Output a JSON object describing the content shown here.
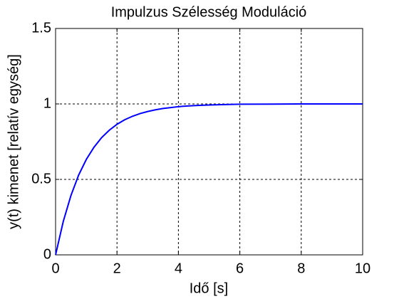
{
  "chart_data": {
    "type": "line",
    "title": "Impulzus Szélesség Moduláció",
    "x_label": "Idő [s]",
    "y_label": "y(t) kimenet [relatív egység]",
    "x": [
      0,
      0.25,
      0.5,
      0.75,
      1,
      1.25,
      1.5,
      1.75,
      2,
      2.25,
      2.5,
      2.75,
      3,
      3.25,
      3.5,
      3.75,
      4,
      4.25,
      4.5,
      4.75,
      5,
      5.5,
      6,
      7,
      8,
      9,
      10
    ],
    "series": [
      {
        "name": "y(t)",
        "color": "#0000ff",
        "values": [
          0,
          0.221,
          0.393,
          0.528,
          0.632,
          0.713,
          0.777,
          0.826,
          0.865,
          0.895,
          0.918,
          0.936,
          0.95,
          0.961,
          0.97,
          0.976,
          0.982,
          0.986,
          0.989,
          0.991,
          0.993,
          0.996,
          0.998,
          0.999,
          1,
          1,
          1
        ]
      }
    ],
    "xlim": [
      0,
      10
    ],
    "xticks": [
      0,
      2,
      4,
      6,
      8,
      10
    ],
    "ylim": [
      0,
      1.5
    ],
    "yticks": [
      0,
      0.5,
      1,
      1.5
    ],
    "grid": true
  }
}
